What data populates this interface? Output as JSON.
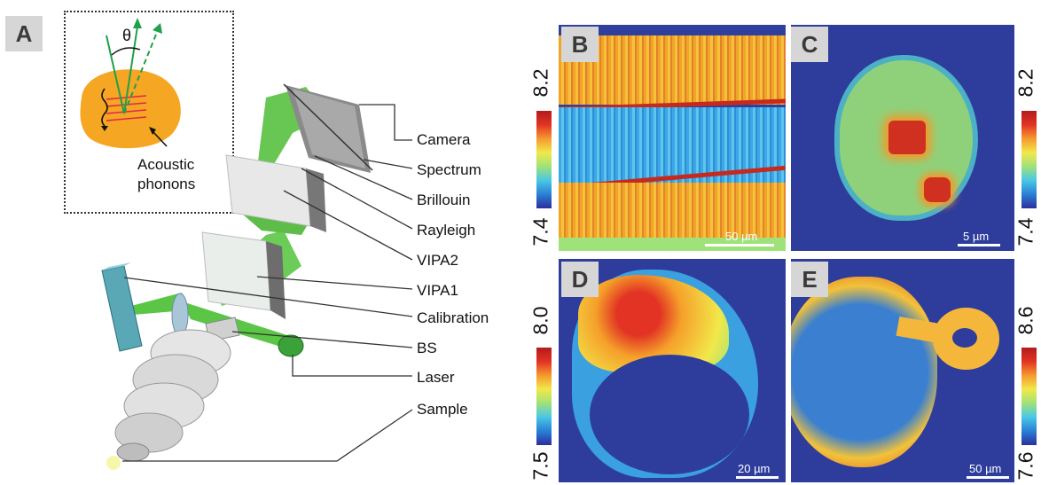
{
  "panels": {
    "a_letter": "A",
    "b_letter": "B",
    "c_letter": "C",
    "d_letter": "D",
    "e_letter": "E"
  },
  "inset": {
    "angle_symbol": "θ",
    "phonon_label_line1": "Acoustic",
    "phonon_label_line2": "phonons"
  },
  "components": [
    "Camera",
    "Spectrum",
    "Brillouin",
    "Rayleigh",
    "VIPA2",
    "VIPA1",
    "Calibration",
    "BS",
    "Laser",
    "Sample"
  ],
  "colorbars": {
    "b_top": "8.2",
    "b_bottom": "7.4",
    "c_top": "8.2",
    "c_bottom": "7.4",
    "d_top": "8.0",
    "d_bottom": "7.5",
    "e_top": "8.6",
    "e_bottom": "7.6"
  },
  "scalebars": {
    "b": "50 µm",
    "c": "5 µm",
    "d": "20 µm",
    "e": "50 µm"
  },
  "colors": {
    "beam_green": "#46b93a",
    "cell_orange": "#f5a623",
    "map_blue": "#2e3d9c"
  }
}
